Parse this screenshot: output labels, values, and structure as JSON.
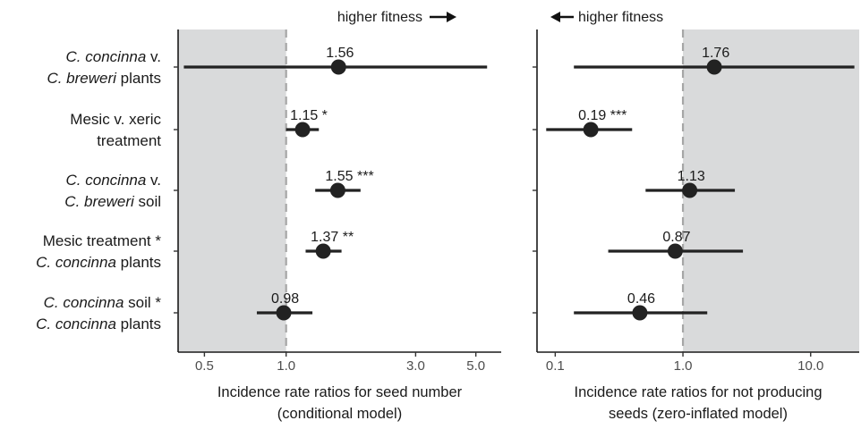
{
  "chart_data": [
    {
      "type": "forest",
      "xscale": "log",
      "xlim": [
        0.4,
        6.2
      ],
      "xticks": [
        0.5,
        1.0,
        3.0,
        5.0
      ],
      "xtick_labels": [
        "0.5",
        "1.0",
        "3.0",
        "5.0"
      ],
      "reference_line": 1.0,
      "shaded_region": [
        0.4,
        1.0
      ],
      "xlabel": "Incidence rate ratios for seed number",
      "xlabel_sub": "(conditional model)",
      "annotation": "higher fitness",
      "annotation_direction": "right",
      "rows": [
        {
          "estimate": 1.56,
          "lower": 0.42,
          "upper": 5.5,
          "label": "1.56"
        },
        {
          "estimate": 1.15,
          "lower": 1.0,
          "upper": 1.32,
          "label": "1.15 *"
        },
        {
          "estimate": 1.55,
          "lower": 1.28,
          "upper": 1.88,
          "label": "1.55 ***"
        },
        {
          "estimate": 1.37,
          "lower": 1.18,
          "upper": 1.6,
          "label": "1.37 **"
        },
        {
          "estimate": 0.98,
          "lower": 0.78,
          "upper": 1.25,
          "label": "0.98"
        }
      ]
    },
    {
      "type": "forest",
      "xscale": "log",
      "xlim": [
        0.072,
        24
      ],
      "xticks": [
        0.1,
        1.0,
        10.0
      ],
      "xtick_labels": [
        "0.1",
        "1.0",
        "10.0"
      ],
      "reference_line": 1.0,
      "shaded_region": [
        1.0,
        24
      ],
      "xlabel": "Incidence rate ratios for not producing",
      "xlabel_sub": "seeds (zero-inflated model)",
      "annotation": "higher fitness",
      "annotation_direction": "left",
      "rows": [
        {
          "estimate": 1.76,
          "lower": 0.14,
          "upper": 22,
          "label": "1.76"
        },
        {
          "estimate": 0.19,
          "lower": 0.085,
          "upper": 0.4,
          "label": "0.19 ***"
        },
        {
          "estimate": 1.13,
          "lower": 0.51,
          "upper": 2.55,
          "label": "1.13"
        },
        {
          "estimate": 0.87,
          "lower": 0.26,
          "upper": 2.95,
          "label": "0.87"
        },
        {
          "estimate": 0.46,
          "lower": 0.14,
          "upper": 1.55,
          "label": "0.46"
        }
      ]
    }
  ],
  "row_labels": [
    [
      {
        "text": "C. concinna",
        "italic": true
      },
      {
        "text": " v.",
        "italic": false
      }
    ],
    [
      {
        "text": "C. breweri",
        "italic": true
      },
      {
        "text": " plants",
        "italic": false
      }
    ],
    [
      {
        "text": "Mesic v. xeric",
        "italic": false
      }
    ],
    [
      {
        "text": "treatment",
        "italic": false
      }
    ],
    [
      {
        "text": "C. concinna",
        "italic": true
      },
      {
        "text": " v.",
        "italic": false
      }
    ],
    [
      {
        "text": "C. breweri",
        "italic": true
      },
      {
        "text": " soil",
        "italic": false
      }
    ],
    [
      {
        "text": "Mesic treatment *",
        "italic": false
      }
    ],
    [
      {
        "text": "C. concinna",
        "italic": true
      },
      {
        "text": " plants",
        "italic": false
      }
    ],
    [
      {
        "text": "C. concinna",
        "italic": true
      },
      {
        "text": " soil *",
        "italic": false
      }
    ],
    [
      {
        "text": "C. concinna",
        "italic": true
      },
      {
        "text": " plants",
        "italic": false
      }
    ]
  ],
  "colors": {
    "shade": "#d9dadb",
    "point": "#222222",
    "refline": "#a6a6a6",
    "axis": "#1a1a1a"
  }
}
